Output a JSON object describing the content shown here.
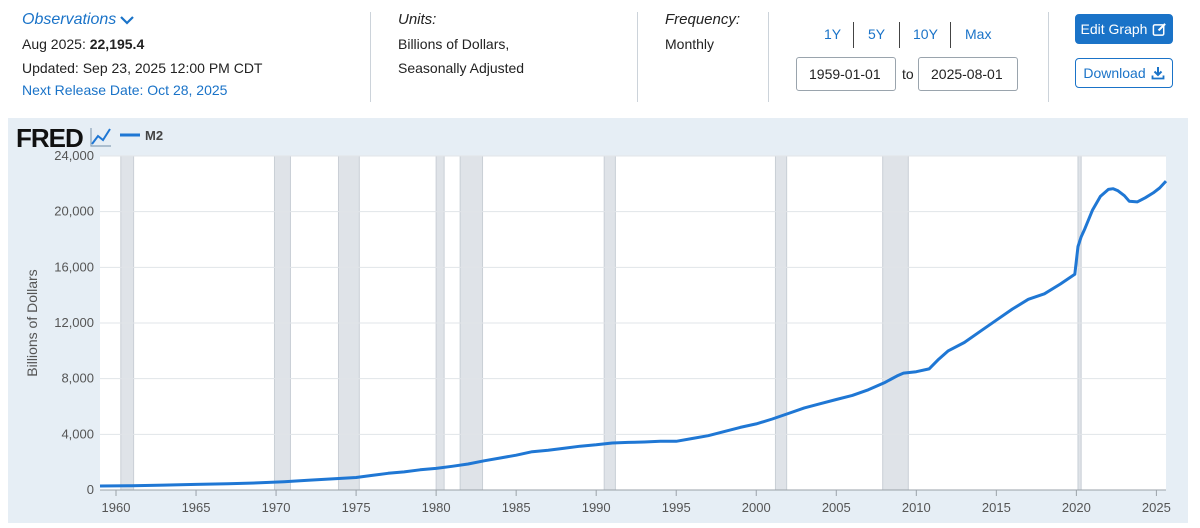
{
  "header": {
    "observations_label": "Observations",
    "latest_prefix": "Aug 2025: ",
    "latest_value": "22,195.4",
    "updated": "Updated: Sep 23, 2025 12:00 PM CDT",
    "next_release": "Next Release Date: Oct 28, 2025",
    "units_label": "Units:",
    "units_line1": "Billions of Dollars,",
    "units_line2": "Seasonally Adjusted",
    "frequency_label": "Frequency:",
    "frequency_value": "Monthly",
    "range_buttons": [
      "1Y",
      "5Y",
      "10Y",
      "Max"
    ],
    "date_start": "1959-01-01",
    "date_to": "to",
    "date_end": "2025-08-01",
    "edit_graph": "Edit Graph",
    "download": "Download"
  },
  "colors": {
    "accent": "#1a73c8",
    "plot_bg": "#e6eef5",
    "line": "#1f77d4",
    "recession": "#dfe3e8"
  },
  "chart_data": {
    "type": "line",
    "logo": "FRED",
    "legend": "M2",
    "legend_position": "top-left",
    "xlabel": "",
    "ylabel": "Billions of Dollars",
    "xlim": [
      1959.0,
      2025.6
    ],
    "ylim": [
      0,
      24000
    ],
    "grid": true,
    "yticks": [
      0,
      4000,
      8000,
      12000,
      16000,
      20000,
      24000
    ],
    "ytick_labels": [
      "0",
      "4,000",
      "8,000",
      "12,000",
      "16,000",
      "20,000",
      "24,000"
    ],
    "xticks": [
      1960,
      1965,
      1970,
      1975,
      1980,
      1985,
      1990,
      1995,
      2000,
      2005,
      2010,
      2015,
      2020,
      2025
    ],
    "xtick_labels": [
      "1960",
      "1965",
      "1970",
      "1975",
      "1980",
      "1985",
      "1990",
      "1995",
      "2000",
      "2005",
      "2010",
      "2015",
      "2020",
      "2025"
    ],
    "recessions": [
      [
        1960.3,
        1961.1
      ],
      [
        1969.9,
        1970.9
      ],
      [
        1973.9,
        1975.2
      ],
      [
        1980.0,
        1980.5
      ],
      [
        1981.5,
        1982.9
      ],
      [
        1990.5,
        1991.2
      ],
      [
        2001.2,
        2001.9
      ],
      [
        2007.9,
        2009.5
      ],
      [
        2020.1,
        2020.3
      ]
    ],
    "series": [
      {
        "name": "M2",
        "x": [
          1959.0,
          1961,
          1963,
          1965,
          1967,
          1969,
          1970.5,
          1972,
          1973.5,
          1975,
          1976,
          1977,
          1978,
          1979,
          1980,
          1981,
          1982,
          1983,
          1984,
          1985,
          1986,
          1987,
          1988,
          1989,
          1990,
          1991,
          1992,
          1993,
          1994,
          1995,
          1996,
          1997,
          1998,
          1999,
          2000,
          2001,
          2002,
          2003,
          2004,
          2005,
          2006,
          2007,
          2008,
          2008.8,
          2009.2,
          2010,
          2010.8,
          2011.4,
          2012,
          2013,
          2014,
          2015,
          2016,
          2017,
          2018,
          2019,
          2019.9,
          2020.1,
          2020.3,
          2020.5,
          2021,
          2021.5,
          2022.0,
          2022.3,
          2022.6,
          2023.0,
          2023.3,
          2023.8,
          2024.3,
          2024.8,
          2025.2,
          2025.6
        ],
        "y": [
          290,
          310,
          350,
          400,
          450,
          520,
          590,
          700,
          800,
          900,
          1050,
          1200,
          1300,
          1450,
          1550,
          1700,
          1870,
          2100,
          2300,
          2500,
          2750,
          2850,
          3000,
          3150,
          3250,
          3380,
          3420,
          3450,
          3500,
          3500,
          3700,
          3900,
          4200,
          4500,
          4750,
          5100,
          5500,
          5900,
          6200,
          6500,
          6800,
          7200,
          7700,
          8200,
          8400,
          8500,
          8700,
          9400,
          10000,
          10600,
          11400,
          12200,
          13000,
          13700,
          14100,
          14800,
          15500,
          17500,
          18200,
          18700,
          20100,
          21100,
          21600,
          21650,
          21500,
          21150,
          20750,
          20700,
          21000,
          21350,
          21700,
          22195.4
        ]
      }
    ]
  }
}
